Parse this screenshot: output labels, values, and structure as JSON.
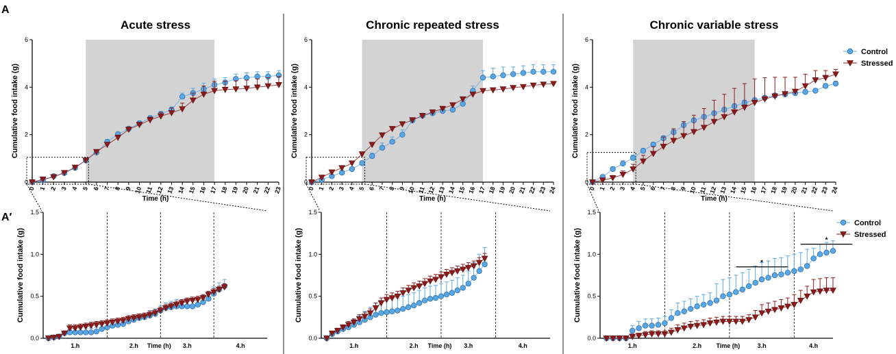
{
  "figure": {
    "panel_a_label": "A",
    "panel_b_label": "A′"
  },
  "colors": {
    "control": "#5aa7e6",
    "control_edge": "#2f6fa8",
    "stressed": "#8b1a1a",
    "shade": "#d3d3d3"
  },
  "chart_data": [
    {
      "type": "line",
      "title": "Acute stress",
      "xlabel": "Time (h)",
      "ylabel": "Cumulative food intake (g)",
      "x": [
        0,
        1,
        2,
        3,
        4,
        5,
        6,
        7,
        8,
        9,
        10,
        11,
        12,
        13,
        14,
        15,
        16,
        17,
        18,
        19,
        20,
        21,
        22,
        23
      ],
      "xlim": [
        0,
        23
      ],
      "ylim": [
        0,
        6
      ],
      "yticks": [
        0,
        2,
        4,
        6
      ],
      "shaded_x": [
        5,
        17
      ],
      "inset_box": {
        "x": [
          0,
          5
        ],
        "y": [
          0,
          1.05
        ]
      },
      "series": [
        {
          "name": "Control",
          "values": [
            0.0,
            0.08,
            0.25,
            0.38,
            0.6,
            0.92,
            1.25,
            1.7,
            2.02,
            2.25,
            2.48,
            2.7,
            2.88,
            3.05,
            3.6,
            3.75,
            3.92,
            4.1,
            4.2,
            4.35,
            4.4,
            4.45,
            4.45,
            4.5
          ],
          "err": [
            0.02,
            0.03,
            0.04,
            0.05,
            0.05,
            0.06,
            0.08,
            0.1,
            0.08,
            0.08,
            0.1,
            0.1,
            0.1,
            0.12,
            0.15,
            0.2,
            0.25,
            0.25,
            0.2,
            0.2,
            0.2,
            0.2,
            0.2,
            0.2
          ]
        },
        {
          "name": "Stressed",
          "values": [
            0.0,
            0.12,
            0.22,
            0.4,
            0.62,
            0.92,
            1.28,
            1.58,
            1.88,
            2.22,
            2.42,
            2.62,
            2.78,
            2.92,
            3.08,
            3.45,
            3.7,
            3.85,
            3.9,
            3.92,
            3.95,
            4.0,
            4.05,
            4.1
          ],
          "err": [
            0.02,
            0.03,
            0.04,
            0.05,
            0.05,
            0.06,
            0.08,
            0.1,
            0.1,
            0.1,
            0.1,
            0.12,
            0.15,
            0.2,
            0.25,
            0.3,
            0.35,
            0.4,
            0.35,
            0.35,
            0.35,
            0.35,
            0.35,
            0.35
          ]
        }
      ]
    },
    {
      "type": "line",
      "title": "Chronic repeated stress",
      "xlabel": "Time (h)",
      "ylabel": "Cumulative food intake (g)",
      "x": [
        0,
        1,
        2,
        3,
        4,
        5,
        6,
        7,
        8,
        9,
        10,
        11,
        12,
        13,
        14,
        15,
        16,
        17,
        18,
        19,
        20,
        21,
        22,
        23,
        24
      ],
      "xlim": [
        0,
        24
      ],
      "ylim": [
        0,
        6
      ],
      "yticks": [
        0,
        2,
        4,
        6
      ],
      "shaded_x": [
        5,
        17
      ],
      "inset_box": {
        "x": [
          0,
          5
        ],
        "y": [
          0,
          1.05
        ]
      },
      "series": [
        {
          "name": "Control",
          "values": [
            0.0,
            0.1,
            0.25,
            0.4,
            0.55,
            0.8,
            1.1,
            1.45,
            1.7,
            2.0,
            2.6,
            2.8,
            2.9,
            3.0,
            3.05,
            3.3,
            3.85,
            4.4,
            4.45,
            4.5,
            4.55,
            4.6,
            4.65,
            4.65,
            4.65
          ],
          "err": [
            0.02,
            0.03,
            0.05,
            0.06,
            0.08,
            0.1,
            0.12,
            0.2,
            0.2,
            0.2,
            0.1,
            0.1,
            0.1,
            0.1,
            0.1,
            0.15,
            0.2,
            0.3,
            0.35,
            0.35,
            0.3,
            0.3,
            0.3,
            0.3,
            0.3
          ]
        },
        {
          "name": "Stressed",
          "values": [
            0.0,
            0.2,
            0.42,
            0.6,
            0.8,
            1.18,
            1.58,
            1.98,
            2.25,
            2.45,
            2.62,
            2.8,
            2.95,
            3.1,
            3.25,
            3.5,
            3.7,
            3.85,
            3.88,
            3.92,
            3.98,
            4.02,
            4.08,
            4.12,
            4.15
          ],
          "err": [
            0.02,
            0.03,
            0.04,
            0.05,
            0.06,
            0.08,
            0.08,
            0.08,
            0.08,
            0.08,
            0.08,
            0.08,
            0.08,
            0.08,
            0.08,
            0.08,
            0.08,
            0.08,
            0.08,
            0.08,
            0.08,
            0.08,
            0.08,
            0.08,
            0.08
          ]
        }
      ]
    },
    {
      "type": "line",
      "title": "Chronic variable stress",
      "xlabel": "Time (h)",
      "ylabel": "Cumulative food intake (g)",
      "x": [
        0,
        1,
        2,
        3,
        4,
        5,
        6,
        7,
        8,
        9,
        10,
        11,
        12,
        13,
        14,
        15,
        16,
        17,
        18,
        19,
        20,
        21,
        22,
        23,
        24
      ],
      "xlim": [
        0,
        24
      ],
      "ylim": [
        0,
        6
      ],
      "yticks": [
        0,
        2,
        4,
        6
      ],
      "shaded_x": [
        4,
        16
      ],
      "inset_box": {
        "x": [
          0,
          4
        ],
        "y": [
          0,
          1.25
        ]
      },
      "legend": {
        "position": "top-right",
        "entries": [
          "Control",
          "Stressed"
        ]
      },
      "series": [
        {
          "name": "Control",
          "values": [
            0.0,
            0.22,
            0.55,
            0.78,
            1.02,
            1.32,
            1.58,
            1.85,
            2.1,
            2.4,
            2.6,
            2.75,
            2.9,
            3.05,
            3.2,
            3.35,
            3.45,
            3.55,
            3.65,
            3.7,
            3.75,
            3.8,
            3.85,
            4.05,
            4.15
          ],
          "err": [
            0.02,
            0.05,
            0.1,
            0.12,
            0.12,
            0.1,
            0.1,
            0.1,
            0.1,
            0.1,
            0.1,
            0.1,
            0.1,
            0.1,
            0.1,
            0.1,
            0.1,
            0.1,
            0.1,
            0.1,
            0.1,
            0.1,
            0.1,
            0.1,
            0.1
          ]
        },
        {
          "name": "Stressed",
          "values": [
            0.0,
            0.08,
            0.18,
            0.32,
            0.55,
            0.88,
            1.2,
            1.5,
            1.75,
            1.95,
            2.12,
            2.3,
            2.55,
            2.75,
            2.95,
            3.15,
            3.35,
            3.5,
            3.62,
            3.72,
            3.82,
            4.05,
            4.3,
            4.4,
            4.55
          ],
          "err": [
            0.02,
            0.05,
            0.1,
            0.15,
            0.2,
            0.25,
            0.3,
            0.4,
            0.5,
            0.6,
            0.7,
            0.8,
            0.9,
            0.95,
            1.0,
            1.0,
            1.0,
            0.9,
            0.8,
            0.7,
            0.6,
            0.5,
            0.4,
            0.3,
            0.2
          ]
        }
      ]
    },
    {
      "type": "line",
      "xlabel": "Time (h)",
      "ylabel": "Cumulative food intake (g)",
      "xlim": [
        0,
        42
      ],
      "ylim": [
        0,
        1.5
      ],
      "yticks": [
        0.0,
        0.5,
        1.0,
        1.5
      ],
      "hour_labels": [
        "1.h",
        "2.h",
        "3.h",
        "4.h"
      ],
      "hour_lines_x": [
        12,
        22,
        32
      ],
      "series": [
        {
          "name": "Control",
          "values": [
            0.0,
            0.01,
            0.02,
            0.06,
            0.07,
            0.07,
            0.07,
            0.07,
            0.07,
            0.08,
            0.11,
            0.13,
            0.15,
            0.16,
            0.17,
            0.2,
            0.22,
            0.24,
            0.25,
            0.27,
            0.29,
            0.33,
            0.36,
            0.37,
            0.38,
            0.38,
            0.38,
            0.38,
            0.4,
            0.43,
            0.47,
            0.53,
            0.58,
            0.62
          ],
          "err": [
            0.01,
            0.01,
            0.01,
            0.02,
            0.03,
            0.04,
            0.05,
            0.05,
            0.05,
            0.05,
            0.05,
            0.05,
            0.05,
            0.05,
            0.05,
            0.05,
            0.05,
            0.05,
            0.05,
            0.06,
            0.06,
            0.06,
            0.06,
            0.07,
            0.08,
            0.08,
            0.08,
            0.08,
            0.08,
            0.08,
            0.08,
            0.08,
            0.08,
            0.08
          ]
        },
        {
          "name": "Stressed",
          "values": [
            0.0,
            0.01,
            0.02,
            0.06,
            0.12,
            0.12,
            0.13,
            0.14,
            0.15,
            0.16,
            0.17,
            0.18,
            0.19,
            0.2,
            0.21,
            0.23,
            0.24,
            0.25,
            0.26,
            0.28,
            0.3,
            0.33,
            0.36,
            0.38,
            0.4,
            0.42,
            0.44,
            0.45,
            0.46,
            0.48,
            0.52,
            0.55,
            0.58,
            0.61
          ],
          "err": [
            0.01,
            0.01,
            0.01,
            0.02,
            0.04,
            0.04,
            0.04,
            0.04,
            0.04,
            0.04,
            0.04,
            0.04,
            0.04,
            0.04,
            0.04,
            0.04,
            0.04,
            0.04,
            0.04,
            0.04,
            0.04,
            0.04,
            0.04,
            0.04,
            0.04,
            0.04,
            0.04,
            0.04,
            0.04,
            0.04,
            0.04,
            0.04,
            0.04,
            0.04
          ]
        }
      ]
    },
    {
      "type": "line",
      "xlabel": "Time (h)",
      "ylabel": "Cumulative food intake (g)",
      "xlim": [
        0,
        42
      ],
      "ylim": [
        0,
        1.5
      ],
      "yticks": [
        0.0,
        0.5,
        1.0,
        1.5
      ],
      "hour_labels": [
        "1.h",
        "2.h",
        "3.h",
        "4.h"
      ],
      "hour_lines_x": [
        12,
        22,
        32
      ],
      "series": [
        {
          "name": "Control",
          "values": [
            0.0,
            0.05,
            0.08,
            0.11,
            0.13,
            0.16,
            0.19,
            0.22,
            0.25,
            0.28,
            0.3,
            0.31,
            0.32,
            0.33,
            0.35,
            0.37,
            0.39,
            0.42,
            0.45,
            0.47,
            0.48,
            0.5,
            0.52,
            0.54,
            0.57,
            0.6,
            0.65,
            0.72,
            0.8,
            0.88
          ],
          "err": [
            0.01,
            0.02,
            0.03,
            0.04,
            0.05,
            0.06,
            0.08,
            0.1,
            0.12,
            0.14,
            0.15,
            0.15,
            0.15,
            0.15,
            0.15,
            0.15,
            0.15,
            0.15,
            0.15,
            0.15,
            0.15,
            0.15,
            0.15,
            0.15,
            0.15,
            0.15,
            0.15,
            0.18,
            0.2,
            0.2
          ]
        },
        {
          "name": "Stressed",
          "values": [
            0.0,
            0.06,
            0.09,
            0.13,
            0.16,
            0.19,
            0.23,
            0.26,
            0.3,
            0.36,
            0.42,
            0.46,
            0.48,
            0.5,
            0.54,
            0.57,
            0.6,
            0.62,
            0.65,
            0.68,
            0.7,
            0.73,
            0.76,
            0.78,
            0.8,
            0.82,
            0.84,
            0.86,
            0.9,
            0.95
          ],
          "err": [
            0.01,
            0.02,
            0.03,
            0.03,
            0.04,
            0.04,
            0.05,
            0.05,
            0.05,
            0.06,
            0.06,
            0.06,
            0.06,
            0.06,
            0.06,
            0.06,
            0.06,
            0.06,
            0.06,
            0.06,
            0.06,
            0.06,
            0.06,
            0.06,
            0.06,
            0.06,
            0.06,
            0.06,
            0.06,
            0.06
          ]
        }
      ]
    },
    {
      "type": "line",
      "xlabel": "Time (h)",
      "ylabel": "Cumulative food intake (g)",
      "xlim": [
        0,
        36
      ],
      "ylim": [
        0,
        1.5
      ],
      "yticks": [
        0.0,
        0.5,
        1.0,
        1.5
      ],
      "hour_labels": [
        "1.h",
        "2.h",
        "3.h",
        "4.h"
      ],
      "hour_lines_x": [
        10,
        20,
        30
      ],
      "legend": {
        "position": "top-right",
        "entries": [
          "Control",
          "Stressed"
        ]
      },
      "significance": [
        {
          "x": [
            21,
            29
          ],
          "y": 0.85,
          "label": "*"
        },
        {
          "x": [
            31,
            39
          ],
          "y": 1.12,
          "label": "*"
        }
      ],
      "series": [
        {
          "name": "Control",
          "values": [
            0.0,
            0.0,
            0.0,
            0.0,
            0.09,
            0.12,
            0.15,
            0.15,
            0.16,
            0.18,
            0.24,
            0.3,
            0.32,
            0.35,
            0.38,
            0.4,
            0.42,
            0.45,
            0.5,
            0.52,
            0.55,
            0.58,
            0.62,
            0.66,
            0.7,
            0.72,
            0.75,
            0.76,
            0.78,
            0.8,
            0.82,
            0.86,
            0.95,
            1.0,
            1.02,
            1.04
          ],
          "err": [
            0.0,
            0.0,
            0.0,
            0.0,
            0.06,
            0.08,
            0.08,
            0.08,
            0.08,
            0.08,
            0.1,
            0.12,
            0.12,
            0.12,
            0.12,
            0.12,
            0.12,
            0.2,
            0.2,
            0.2,
            0.2,
            0.2,
            0.2,
            0.2,
            0.2,
            0.2,
            0.2,
            0.2,
            0.2,
            0.2,
            0.2,
            0.2,
            0.12,
            0.12,
            0.12,
            0.12
          ]
        },
        {
          "name": "Stressed",
          "values": [
            0.0,
            0.0,
            0.0,
            0.0,
            0.02,
            0.03,
            0.04,
            0.05,
            0.05,
            0.05,
            0.07,
            0.1,
            0.12,
            0.14,
            0.15,
            0.16,
            0.18,
            0.19,
            0.2,
            0.2,
            0.2,
            0.2,
            0.22,
            0.25,
            0.3,
            0.32,
            0.34,
            0.36,
            0.38,
            0.4,
            0.45,
            0.5,
            0.55,
            0.56,
            0.57,
            0.57
          ],
          "err": [
            0.0,
            0.0,
            0.0,
            0.0,
            0.03,
            0.03,
            0.04,
            0.04,
            0.04,
            0.04,
            0.05,
            0.06,
            0.06,
            0.06,
            0.06,
            0.06,
            0.06,
            0.06,
            0.06,
            0.06,
            0.06,
            0.06,
            0.06,
            0.08,
            0.1,
            0.1,
            0.1,
            0.1,
            0.1,
            0.12,
            0.12,
            0.12,
            0.15,
            0.15,
            0.15,
            0.15
          ]
        }
      ]
    }
  ]
}
